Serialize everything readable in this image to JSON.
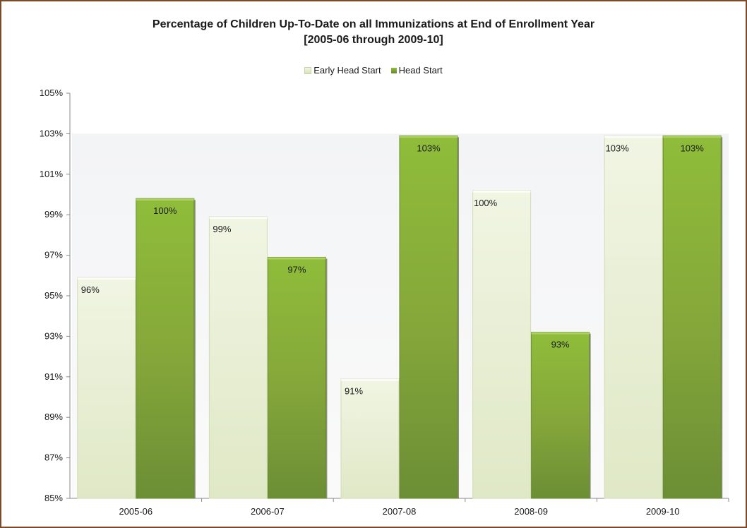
{
  "chart_data": {
    "type": "bar",
    "title": "Percentage of Children Up-To-Date on all Immunizations at End of Enrollment Year",
    "subtitle": "[2005-06 through 2009-10]",
    "xlabel": "",
    "ylabel": "",
    "categories": [
      "2005-06",
      "2006-07",
      "2007-08",
      "2008-09",
      "2009-10"
    ],
    "series": [
      {
        "name": "Early Head Start",
        "values": [
          95.9,
          98.9,
          90.9,
          100.2,
          102.9
        ],
        "labels": [
          "96%",
          "99%",
          "91%",
          "100%",
          "103%"
        ],
        "color": "#e4eccc"
      },
      {
        "name": "Head Start",
        "values": [
          99.8,
          96.9,
          102.9,
          93.2,
          102.9
        ],
        "labels": [
          "100%",
          "97%",
          "103%",
          "93%",
          "103%"
        ],
        "color": "#7fa23a"
      }
    ],
    "ylim": [
      85,
      105
    ],
    "yticks": [
      "85%",
      "87%",
      "89%",
      "91%",
      "93%",
      "95%",
      "97%",
      "99%",
      "101%",
      "103%",
      "105%"
    ],
    "legend_position": "top-center",
    "grid": false
  }
}
